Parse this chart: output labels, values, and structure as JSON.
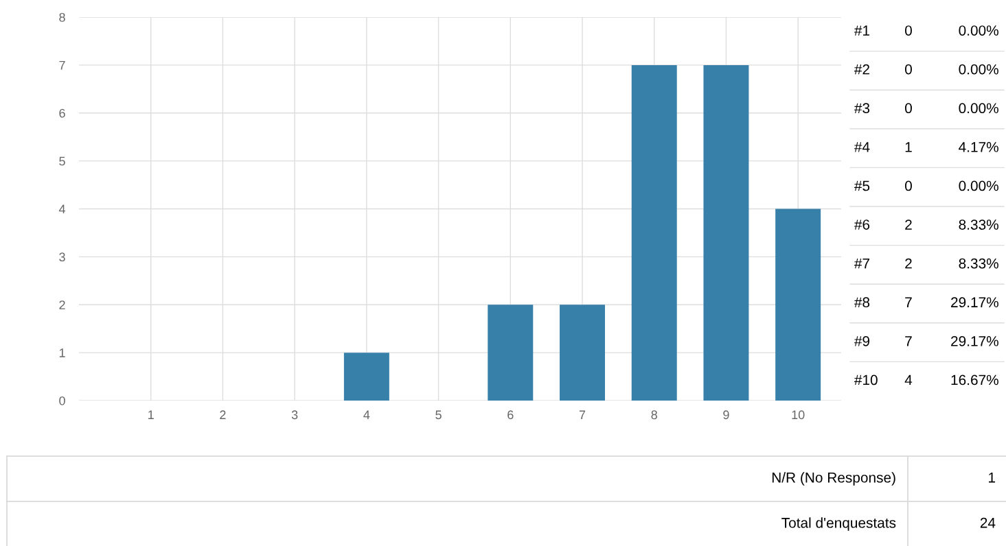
{
  "chart_data": {
    "type": "bar",
    "categories": [
      "1",
      "2",
      "3",
      "4",
      "5",
      "6",
      "7",
      "8",
      "9",
      "10"
    ],
    "values": [
      0,
      0,
      0,
      1,
      0,
      2,
      2,
      7,
      7,
      4
    ],
    "color": "#3780aa",
    "ylim": [
      0,
      8
    ],
    "yticks": [
      0,
      1,
      2,
      3,
      4,
      5,
      6,
      7,
      8
    ],
    "grid": true,
    "annotations": [
      "#1",
      "0",
      "0.00%",
      "#2",
      "0",
      "0.00%",
      "#3",
      "0",
      "0.00%",
      "#4",
      "1",
      "4.17%",
      "#5",
      "0",
      "0.00%",
      "#6",
      "2",
      "8.33%",
      "#7",
      "2",
      "8.33%",
      "#8",
      "7",
      "29.17%",
      "#9",
      "7",
      "29.17%",
      "#10",
      "4",
      "16.67%",
      "N/R (No Response)",
      "1",
      "Total d'enquestats",
      "24"
    ]
  }
}
